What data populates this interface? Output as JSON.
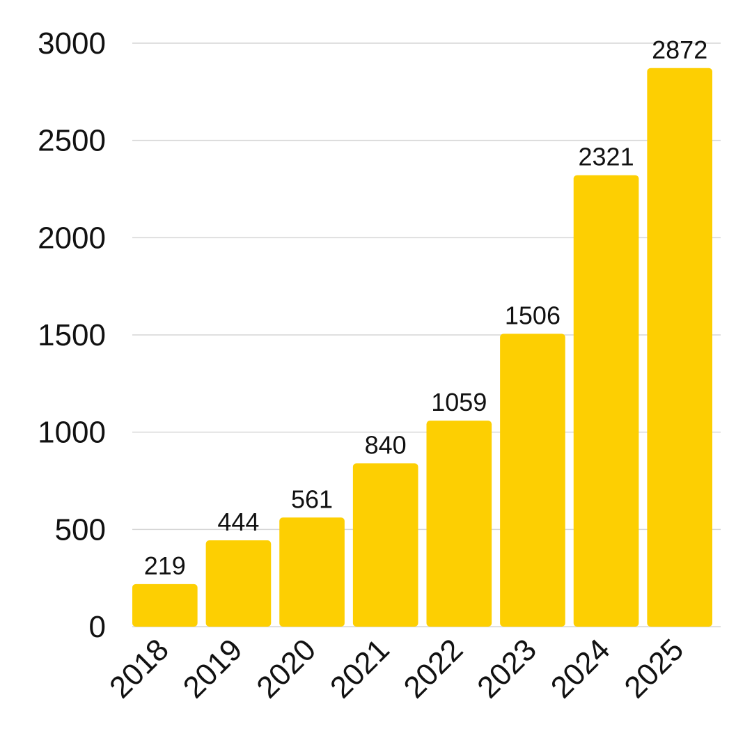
{
  "chart_data": {
    "type": "bar",
    "categories": [
      "2018",
      "2019",
      "2020",
      "2021",
      "2022",
      "2023",
      "2024",
      "2025"
    ],
    "values": [
      219,
      444,
      561,
      840,
      1059,
      1506,
      2321,
      2872
    ],
    "data_labels": [
      "219",
      "444",
      "561",
      "840",
      "1059",
      "1506",
      "2321",
      "2872"
    ],
    "yticks": [
      "0",
      "500",
      "1000",
      "1500",
      "2000",
      "2500",
      "3000"
    ],
    "ytick_values": [
      0,
      500,
      1000,
      1500,
      2000,
      2500,
      3000
    ],
    "ylim": [
      0,
      3000
    ],
    "grid": true,
    "bar_color": "#FDCF02",
    "x_tick_rotation": "-45deg"
  }
}
